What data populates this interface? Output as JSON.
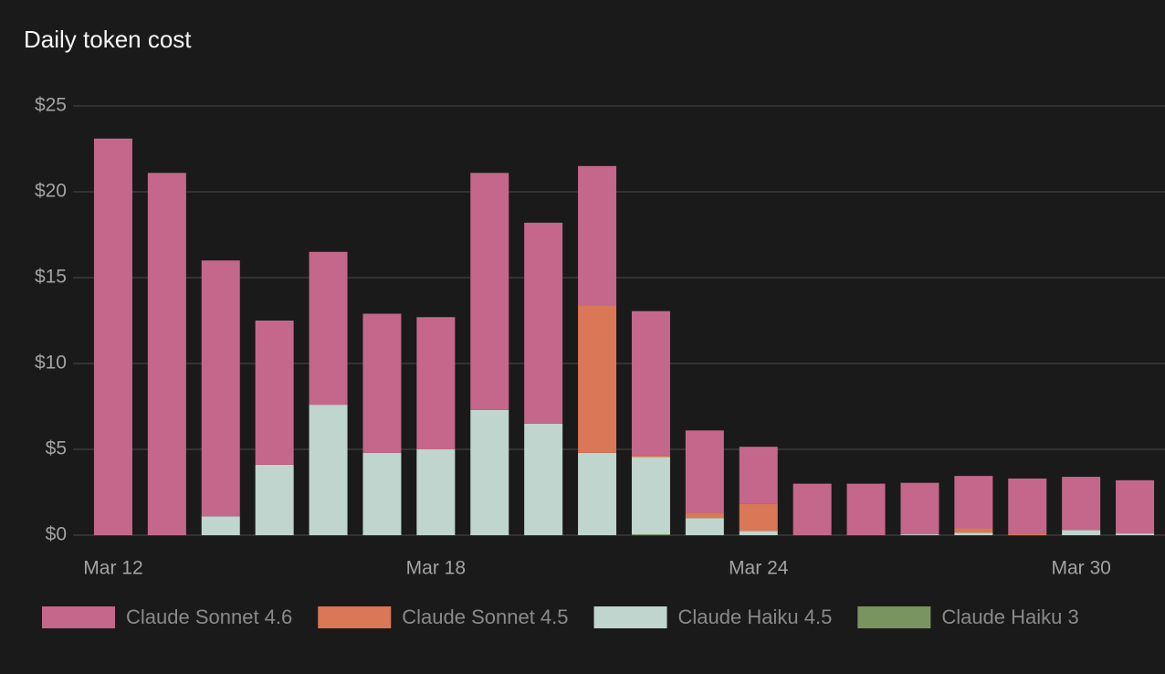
{
  "chart_data": {
    "type": "stacked-bar",
    "title": "Daily token cost",
    "categories": [
      "Mar 12",
      null,
      null,
      null,
      null,
      null,
      "Mar 18",
      null,
      null,
      null,
      null,
      null,
      "Mar 24",
      null,
      null,
      null,
      null,
      null,
      "Mar 30",
      null
    ],
    "series": [
      {
        "name": "Claude Sonnet 4.6",
        "color": "#c4678b",
        "values": [
          23.1,
          21.1,
          14.9,
          8.4,
          8.9,
          8.1,
          7.7,
          13.8,
          11.7,
          8.1,
          8.4,
          4.8,
          3.3,
          3.0,
          3.0,
          3.0,
          3.05,
          3.2,
          3.1,
          3.1
        ]
      },
      {
        "name": "Claude Sonnet 4.5",
        "color": "#d97757",
        "values": [
          0,
          0,
          0,
          0,
          0,
          0,
          0,
          0,
          0,
          8.6,
          0.1,
          0.3,
          1.6,
          0,
          0,
          0,
          0.25,
          0.1,
          0,
          0
        ]
      },
      {
        "name": "Claude Haiku 4.5",
        "color": "#bfd5cd",
        "values": [
          0,
          0,
          1.1,
          4.1,
          7.6,
          4.8,
          5.0,
          7.3,
          6.5,
          4.8,
          4.5,
          1.0,
          0.25,
          0,
          0,
          0.05,
          0.15,
          0,
          0.3,
          0.1
        ]
      },
      {
        "name": "Claude Haiku 3",
        "color": "#7a9460",
        "values": [
          0,
          0,
          0,
          0,
          0,
          0,
          0,
          0,
          0,
          0,
          0.05,
          0,
          0,
          0,
          0,
          0,
          0,
          0,
          0,
          0
        ]
      }
    ],
    "ylim": [
      0,
      25
    ],
    "yticks": [
      {
        "value": 0,
        "label": "$0"
      },
      {
        "value": 5,
        "label": "$5"
      },
      {
        "value": 10,
        "label": "$10"
      },
      {
        "value": 15,
        "label": "$15"
      },
      {
        "value": 20,
        "label": "$20"
      },
      {
        "value": 25,
        "label": "$25"
      }
    ],
    "grid": true,
    "legend": "bottom"
  }
}
